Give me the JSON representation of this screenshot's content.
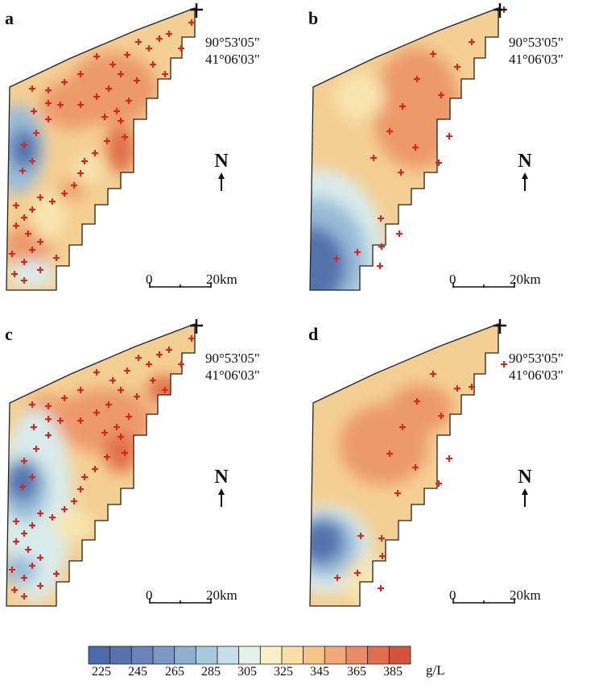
{
  "panels": [
    {
      "label": "a",
      "coord_lon": "90°53'05\"",
      "coord_lat": "41°06'03\"",
      "scale_start": "0",
      "scale_end": "20km",
      "north": "N"
    },
    {
      "label": "b",
      "coord_lon": "90°53'05\"",
      "coord_lat": "41°06'03\"",
      "scale_start": "0",
      "scale_end": "20km",
      "north": "N"
    },
    {
      "label": "c",
      "coord_lon": "90°53'05\"",
      "coord_lat": "41°06'03\"",
      "scale_start": "0",
      "scale_end": "20km",
      "north": "N"
    },
    {
      "label": "d",
      "coord_lon": "90°53'05\"",
      "coord_lat": "41°06'03\"",
      "scale_start": "0",
      "scale_end": "20km",
      "north": "N"
    }
  ],
  "legend": {
    "ticks": [
      "225",
      "245",
      "265",
      "285",
      "305",
      "325",
      "345",
      "365",
      "385"
    ],
    "unit": "g/L",
    "colors": [
      "#4a6aa8",
      "#5574ae",
      "#6a86b9",
      "#7c97c4",
      "#8db0cf",
      "#a7c9de",
      "#c7e1ea",
      "#e6f1ec",
      "#f8f1c8",
      "#f7dfa6",
      "#f4c68a",
      "#f0a978",
      "#ea8d67",
      "#e06e4e",
      "#d4533c"
    ]
  },
  "map_colors": {
    "base": "#f4cf93",
    "high": "#ec9a6b",
    "very_high": "#e07048",
    "mid": "#f8e6b0",
    "low_light": "#d9ecec",
    "low": "#98bcd8",
    "very_low": "#5273ad",
    "sample_marker": "#e0201b"
  }
}
